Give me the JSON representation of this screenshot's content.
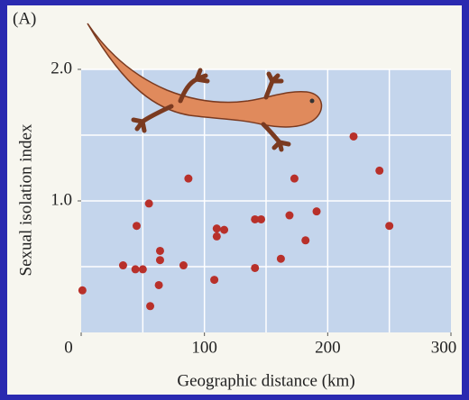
{
  "chart_data": {
    "type": "scatter",
    "panel_label": "(A)",
    "x_label": "Geographic distance (km)",
    "y_label": "Sexual isolation index",
    "xlim": [
      0,
      300
    ],
    "ylim": [
      0,
      2.0
    ],
    "xticks": [
      0,
      100,
      200,
      300
    ],
    "yticks": [
      {
        "value": 1.0,
        "label": "1.0"
      },
      {
        "value": 2.0,
        "label": "2.0"
      }
    ],
    "xgrid": [
      50,
      100,
      150,
      200,
      250
    ],
    "ygrid": [
      0.5,
      1.0,
      1.5
    ],
    "color": "#b8302a",
    "x": [
      1,
      34,
      44,
      50,
      45,
      55,
      64,
      64,
      63,
      56,
      87,
      83,
      108,
      110,
      110,
      116,
      141,
      146,
      141,
      162,
      169,
      173,
      182,
      191,
      221,
      242,
      250
    ],
    "values": [
      0.32,
      0.51,
      0.48,
      0.48,
      0.81,
      0.98,
      0.62,
      0.55,
      0.36,
      0.2,
      1.17,
      0.51,
      0.4,
      0.73,
      0.79,
      0.78,
      0.86,
      0.86,
      0.49,
      0.56,
      0.89,
      1.17,
      0.7,
      0.92,
      1.49,
      1.23,
      0.81
    ]
  }
}
